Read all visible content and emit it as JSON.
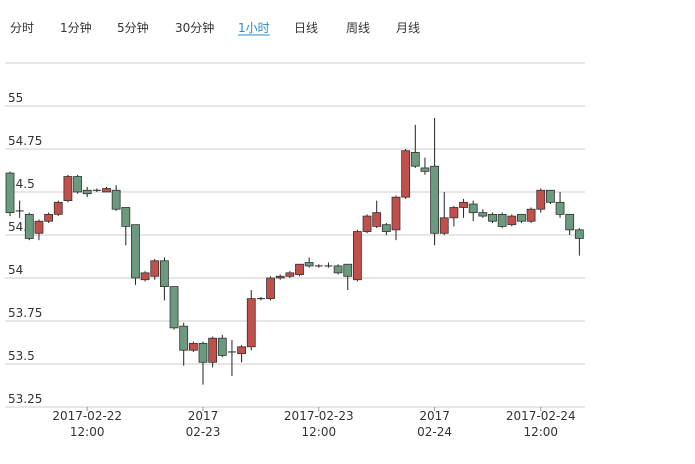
{
  "tabs": {
    "items": [
      "分时",
      "1分钟",
      "5分钟",
      "30分钟",
      "1小时",
      "日线",
      "周线",
      "月线"
    ],
    "active": 4
  },
  "chart_data": {
    "type": "candlestick",
    "categories": [
      null,
      null,
      null,
      null,
      null,
      null,
      null,
      null,
      [
        "2017-02-22",
        "12:00"
      ],
      null,
      null,
      null,
      null,
      null,
      null,
      null,
      null,
      null,
      null,
      null,
      [
        "2017",
        "02-23"
      ],
      null,
      null,
      null,
      null,
      null,
      null,
      null,
      null,
      null,
      null,
      null,
      [
        "2017-02-23",
        "12:00"
      ],
      null,
      null,
      null,
      null,
      null,
      null,
      null,
      null,
      null,
      null,
      null,
      [
        "2017",
        "02-24"
      ],
      null,
      null,
      null,
      null,
      null,
      null,
      null,
      null,
      null,
      null,
      [
        "2017-02-24",
        "12:00"
      ],
      null,
      null,
      null,
      null
    ],
    "ohlc": [
      [
        54.61,
        54.62,
        54.36,
        54.38
      ],
      [
        54.39,
        54.45,
        54.35,
        54.39
      ],
      [
        54.37,
        54.38,
        54.22,
        54.23
      ],
      [
        54.26,
        54.34,
        54.22,
        54.33
      ],
      [
        54.33,
        54.38,
        54.32,
        54.37
      ],
      [
        54.37,
        54.45,
        54.36,
        54.44
      ],
      [
        54.45,
        54.6,
        54.44,
        54.59
      ],
      [
        54.59,
        54.6,
        54.49,
        54.5
      ],
      [
        54.51,
        54.53,
        54.47,
        54.49
      ],
      [
        54.51,
        54.52,
        54.5,
        54.51
      ],
      [
        54.5,
        54.53,
        54.5,
        54.52
      ],
      [
        54.51,
        54.54,
        54.39,
        54.4
      ],
      [
        54.41,
        54.41,
        54.19,
        54.3
      ],
      [
        54.31,
        54.31,
        53.96,
        54.0
      ],
      [
        53.99,
        54.04,
        53.98,
        54.03
      ],
      [
        54.01,
        54.11,
        53.99,
        54.1
      ],
      [
        54.1,
        54.12,
        53.87,
        53.95
      ],
      [
        53.95,
        53.95,
        53.7,
        53.71
      ],
      [
        53.72,
        53.74,
        53.49,
        53.58
      ],
      [
        53.58,
        53.63,
        53.57,
        53.62
      ],
      [
        53.62,
        53.63,
        53.38,
        53.51
      ],
      [
        53.51,
        53.66,
        53.48,
        53.65
      ],
      [
        53.65,
        53.67,
        53.54,
        53.55
      ],
      [
        53.57,
        53.64,
        53.43,
        53.57
      ],
      [
        53.56,
        53.61,
        53.51,
        53.6
      ],
      [
        53.6,
        53.93,
        53.58,
        53.88
      ],
      [
        53.88,
        53.89,
        53.87,
        53.88
      ],
      [
        53.88,
        54.01,
        53.87,
        54.0
      ],
      [
        54.0,
        54.02,
        53.99,
        54.01
      ],
      [
        54.01,
        54.04,
        54.0,
        54.03
      ],
      [
        54.02,
        54.08,
        54.01,
        54.08
      ],
      [
        54.09,
        54.12,
        54.06,
        54.07
      ],
      [
        54.07,
        54.08,
        54.06,
        54.07
      ],
      [
        54.07,
        54.09,
        54.06,
        54.07
      ],
      [
        54.07,
        54.08,
        54.02,
        54.03
      ],
      [
        54.08,
        54.08,
        53.93,
        54.01
      ],
      [
        53.99,
        54.28,
        53.98,
        54.27
      ],
      [
        54.27,
        54.37,
        54.26,
        54.36
      ],
      [
        54.3,
        54.45,
        54.29,
        54.38
      ],
      [
        54.31,
        54.32,
        54.25,
        54.27
      ],
      [
        54.28,
        54.48,
        54.22,
        54.47
      ],
      [
        54.47,
        54.75,
        54.46,
        54.74
      ],
      [
        54.73,
        54.89,
        54.64,
        54.65
      ],
      [
        54.64,
        54.7,
        54.6,
        54.62
      ],
      [
        54.65,
        54.93,
        54.19,
        54.26
      ],
      [
        54.26,
        54.5,
        54.25,
        54.35
      ],
      [
        54.35,
        54.42,
        54.3,
        54.41
      ],
      [
        54.41,
        54.46,
        54.35,
        54.44
      ],
      [
        54.43,
        54.45,
        54.33,
        54.38
      ],
      [
        54.38,
        54.4,
        54.35,
        54.36
      ],
      [
        54.37,
        54.38,
        54.32,
        54.33
      ],
      [
        54.37,
        54.38,
        54.29,
        54.3
      ],
      [
        54.31,
        54.37,
        54.3,
        54.36
      ],
      [
        54.37,
        54.37,
        54.32,
        54.33
      ],
      [
        54.33,
        54.41,
        54.32,
        54.4
      ],
      [
        54.4,
        54.52,
        54.38,
        54.51
      ],
      [
        54.51,
        54.51,
        54.43,
        54.44
      ],
      [
        54.44,
        54.5,
        54.35,
        54.37
      ],
      [
        54.37,
        54.37,
        54.25,
        54.28
      ],
      [
        54.28,
        54.29,
        54.13,
        54.23
      ]
    ],
    "up_color": "#c1504a",
    "down_color": "#6b9a7e",
    "ylim": [
      53.25,
      55.25
    ],
    "yticks": [
      53.25,
      53.5,
      53.75,
      54,
      54.25,
      54.5,
      54.75,
      55
    ],
    "grid": true
  }
}
